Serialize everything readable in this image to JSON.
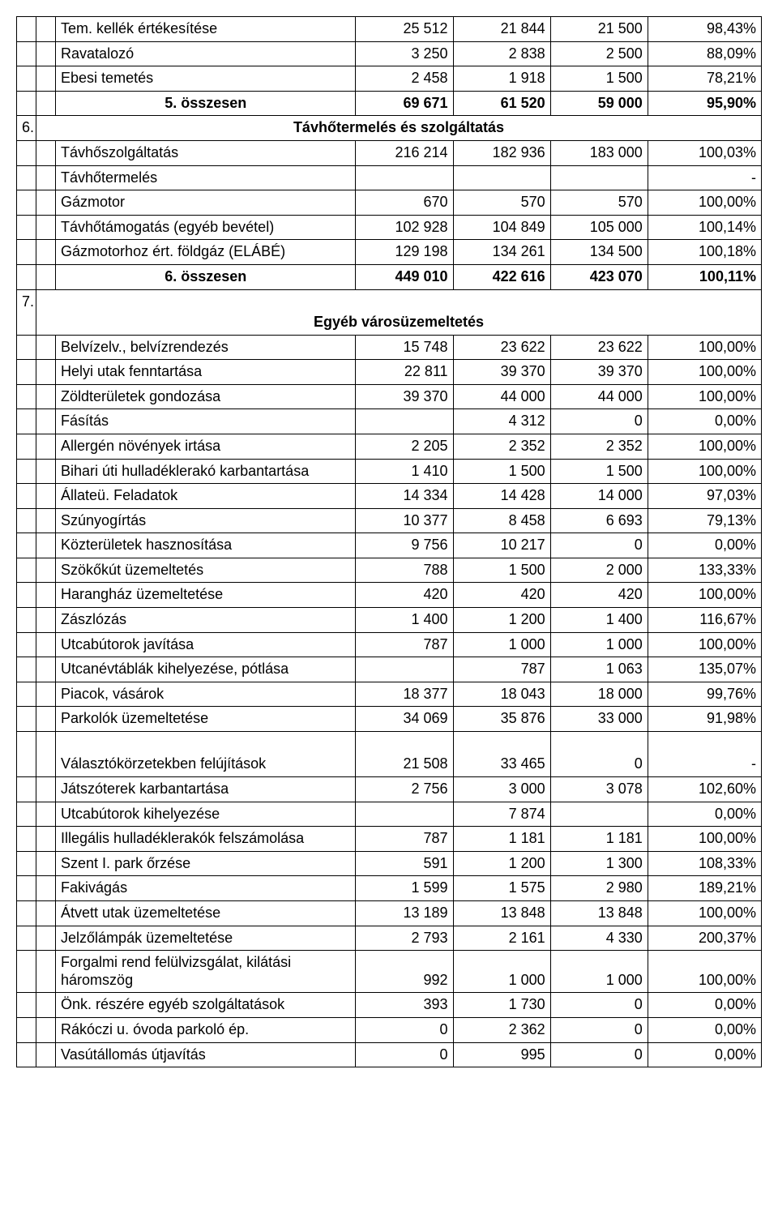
{
  "rows": [
    {
      "n": "",
      "label": "Tem. kellék értékesítése",
      "c3": "25 512",
      "c4": "21 844",
      "c5": "21 500",
      "c6": "98,43%"
    },
    {
      "n": "",
      "label": "Ravatalozó",
      "c3": "3 250",
      "c4": "2 838",
      "c5": "2 500",
      "c6": "88,09%"
    },
    {
      "n": "",
      "label": "Ebesi temetés",
      "c3": "2 458",
      "c4": "1 918",
      "c5": "1 500",
      "c6": "78,21%"
    },
    {
      "n": "",
      "label": "5. összesen",
      "center": true,
      "bold": true,
      "c3": "69 671",
      "c4": "61 520",
      "c5": "59 000",
      "c6": "95,90%"
    },
    {
      "section": true,
      "n": "6.",
      "label": "Távhőtermelés és szolgáltatás"
    },
    {
      "n": "",
      "label": "Távhőszolgáltatás",
      "c3": "216 214",
      "c4": "182 936",
      "c5": "183 000",
      "c6": "100,03%"
    },
    {
      "n": "",
      "label": "Távhőtermelés",
      "c3": "",
      "c4": "",
      "c5": "",
      "c6": "-"
    },
    {
      "n": "",
      "label": "Gázmotor",
      "c3": "670",
      "c4": "570",
      "c5": "570",
      "c6": "100,00%"
    },
    {
      "n": "",
      "label": "Távhőtámogatás (egyéb bevétel)",
      "c3": "102 928",
      "c4": "104 849",
      "c5": "105 000",
      "c6": "100,14%"
    },
    {
      "n": "",
      "label": "Gázmotorhoz ért. földgáz (ELÁBÉ)",
      "c3": "129 198",
      "c4": "134 261",
      "c5": "134 500",
      "c6": "100,18%"
    },
    {
      "n": "",
      "label": "6. összesen",
      "center": true,
      "bold": true,
      "c3": "449 010",
      "c4": "422 616",
      "c5": "423 070",
      "c6": "100,11%"
    },
    {
      "section": true,
      "tall": true,
      "n": "7.",
      "label": "Egyéb városüzemeltetés"
    },
    {
      "n": "",
      "label": "Belvízelv., belvízrendezés",
      "c3": "15 748",
      "c4": "23 622",
      "c5": "23 622",
      "c6": "100,00%"
    },
    {
      "n": "",
      "label": "Helyi utak fenntartása",
      "c3": "22 811",
      "c4": "39 370",
      "c5": "39 370",
      "c6": "100,00%"
    },
    {
      "n": "",
      "label": "Zöldterületek gondozása",
      "c3": "39 370",
      "c4": "44 000",
      "c5": "44 000",
      "c6": "100,00%"
    },
    {
      "n": "",
      "label": "Fásítás",
      "c3": "",
      "c4": "4 312",
      "c5": "0",
      "c6": "0,00%"
    },
    {
      "n": "",
      "label": "Allergén növények irtása",
      "c3": "2 205",
      "c4": "2 352",
      "c5": "2 352",
      "c6": "100,00%"
    },
    {
      "n": "",
      "label": "Bihari úti hulladéklerakó karbantartása",
      "c3": "1 410",
      "c4": "1 500",
      "c5": "1 500",
      "c6": "100,00%"
    },
    {
      "n": "",
      "label": "Állateü. Feladatok",
      "c3": "14 334",
      "c4": "14 428",
      "c5": "14 000",
      "c6": "97,03%"
    },
    {
      "n": "",
      "label": "Szúnyogírtás",
      "c3": "10 377",
      "c4": "8 458",
      "c5": "6 693",
      "c6": "79,13%"
    },
    {
      "n": "",
      "label": "Közterületek hasznosítása",
      "c3": "9 756",
      "c4": "10 217",
      "c5": "0",
      "c6": "0,00%"
    },
    {
      "n": "",
      "label": "Szökőkút üzemeltetés",
      "c3": "788",
      "c4": "1 500",
      "c5": "2 000",
      "c6": "133,33%"
    },
    {
      "n": "",
      "label": "Harangház üzemeltetése",
      "c3": "420",
      "c4": "420",
      "c5": "420",
      "c6": "100,00%"
    },
    {
      "n": "",
      "label": "Zászlózás",
      "c3": "1 400",
      "c4": "1 200",
      "c5": "1 400",
      "c6": "116,67%"
    },
    {
      "n": "",
      "label": "Utcabútorok javítása",
      "c3": "787",
      "c4": "1 000",
      "c5": "1 000",
      "c6": "100,00%"
    },
    {
      "n": "",
      "label": "Utcanévtáblák kihelyezése, pótlása",
      "c3": "",
      "c4": "787",
      "c5": "1 063",
      "c6": "135,07%"
    },
    {
      "n": "",
      "label": "Piacok, vásárok",
      "c3": "18 377",
      "c4": "18 043",
      "c5": "18 000",
      "c6": "99,76%"
    },
    {
      "n": "",
      "label": "Parkolók üzemeltetése",
      "c3": "34 069",
      "c4": "35 876",
      "c5": "33 000",
      "c6": "91,98%"
    },
    {
      "n": "",
      "tall": true,
      "label": "Választókörzetekben felújítások",
      "c3": "21 508",
      "c4": "33 465",
      "c5": "0",
      "c6": "-"
    },
    {
      "n": "",
      "label": "Játszóterek karbantartása",
      "c3": "2 756",
      "c4": "3 000",
      "c5": "3 078",
      "c6": "102,60%"
    },
    {
      "n": "",
      "label": "Utcabútorok kihelyezése",
      "c3": "",
      "c4": "7 874",
      "c5": "",
      "c6": "0,00%"
    },
    {
      "n": "",
      "label": "Illegális hulladéklerakók felszámolása",
      "c3": "787",
      "c4": "1 181",
      "c5": "1 181",
      "c6": "100,00%"
    },
    {
      "n": "",
      "label": "Szent I. park őrzése",
      "c3": "591",
      "c4": "1 200",
      "c5": "1 300",
      "c6": "108,33%"
    },
    {
      "n": "",
      "label": "Fakivágás",
      "c3": "1 599",
      "c4": "1 575",
      "c5": "2 980",
      "c6": "189,21%"
    },
    {
      "n": "",
      "label": "Átvett utak üzemeltetése",
      "c3": "13 189",
      "c4": "13 848",
      "c5": "13 848",
      "c6": "100,00%"
    },
    {
      "n": "",
      "label": "Jelzőlámpák üzemeltetése",
      "c3": "2 793",
      "c4": "2 161",
      "c5": "4 330",
      "c6": "200,37%"
    },
    {
      "n": "",
      "label": "Forgalmi rend felülvizsgálat, kilátási háromszög",
      "c3": "992",
      "c4": "1 000",
      "c5": "1 000",
      "c6": "100,00%"
    },
    {
      "n": "",
      "label": "Önk. részére egyéb szolgáltatások",
      "c3": "393",
      "c4": "1 730",
      "c5": "0",
      "c6": "0,00%"
    },
    {
      "n": "",
      "label": "Rákóczi u. óvoda parkoló ép.",
      "c3": "0",
      "c4": "2 362",
      "c5": "0",
      "c6": "0,00%"
    },
    {
      "n": "",
      "label": "Vasútállomás útjavítás",
      "c3": "0",
      "c4": "995",
      "c5": "0",
      "c6": "0,00%"
    }
  ]
}
